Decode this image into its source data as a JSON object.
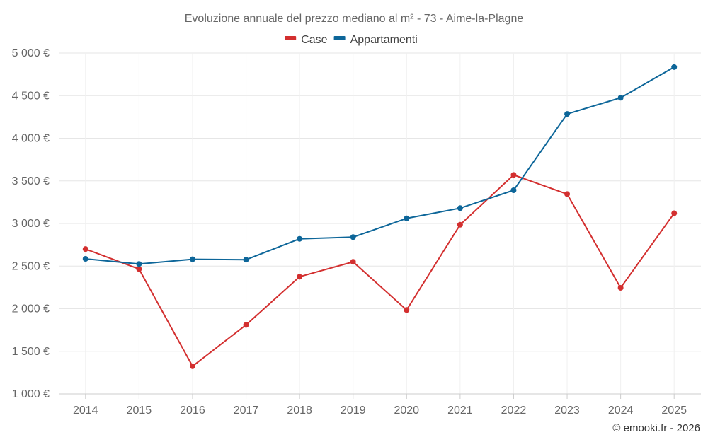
{
  "chart_data": {
    "type": "line",
    "title": "Evoluzione annuale del prezzo mediano al m² - 73 - Aime-la-Plagne",
    "categories": [
      "2014",
      "2015",
      "2016",
      "2017",
      "2018",
      "2019",
      "2020",
      "2021",
      "2022",
      "2023",
      "2024",
      "2025"
    ],
    "series": [
      {
        "name": "Case",
        "color": "#d32f2f",
        "values": [
          2700,
          2465,
          1325,
          1810,
          2375,
          2550,
          1985,
          2985,
          3570,
          3345,
          2245,
          3120
        ]
      },
      {
        "name": "Appartamenti",
        "color": "#0d6699",
        "values": [
          2585,
          2525,
          2580,
          2575,
          2820,
          2840,
          3060,
          3180,
          3390,
          4285,
          4475,
          4835
        ]
      }
    ],
    "ylim": [
      1000,
      5000
    ],
    "y_ticks": [
      1000,
      1500,
      2000,
      2500,
      3000,
      3500,
      4000,
      4500,
      5000
    ],
    "y_tick_labels": [
      "1 000 €",
      "1 500 €",
      "2 000 €",
      "2 500 €",
      "3 000 €",
      "3 500 €",
      "4 000 €",
      "4 500 €",
      "5 000 €"
    ],
    "xlabel": "",
    "ylabel": "",
    "grid": true,
    "legend_position": "top-center"
  },
  "credit": "© emooki.fr - 2026"
}
